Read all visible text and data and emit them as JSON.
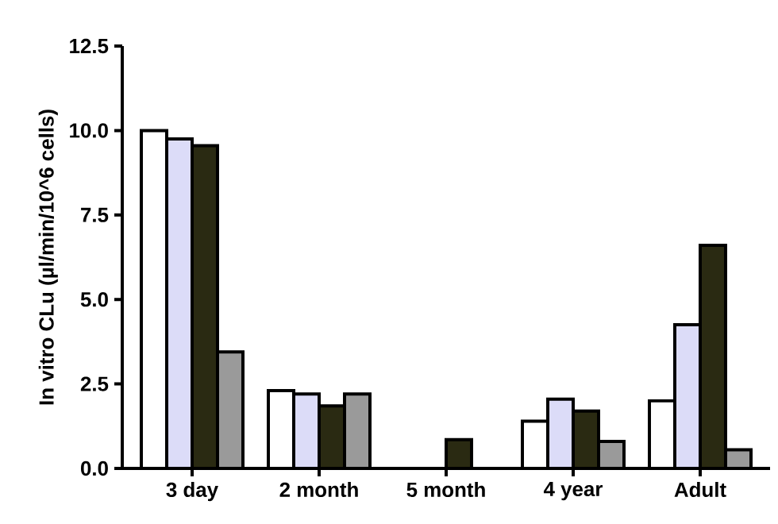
{
  "chart_data": {
    "type": "bar",
    "ylabel": "In vitro CLu (µl/min/10^6 cells)",
    "categories": [
      "3 day",
      "2 month",
      "5 month",
      "4 year",
      "Adult"
    ],
    "series": [
      {
        "color": "#ffffff",
        "values": [
          10.0,
          2.3,
          null,
          1.4,
          2.0
        ]
      },
      {
        "color": "#dcdcf8",
        "values": [
          9.75,
          2.2,
          null,
          2.05,
          4.25
        ]
      },
      {
        "color": "#2a2a12",
        "values": [
          9.55,
          1.85,
          0.85,
          1.7,
          6.6
        ]
      },
      {
        "color": "#9a9a9a",
        "values": [
          3.45,
          2.2,
          null,
          0.8,
          0.55
        ]
      }
    ],
    "ylim": [
      0,
      12.5
    ],
    "yticks": [
      {
        "value": 0,
        "label": "0.0"
      },
      {
        "value": 2.5,
        "label": "2.5"
      },
      {
        "value": 5,
        "label": "5.0"
      },
      {
        "value": 7.5,
        "label": "7.5"
      },
      {
        "value": 10,
        "label": "10.0"
      },
      {
        "value": 12.5,
        "label": "12.5"
      }
    ],
    "grid": false
  }
}
